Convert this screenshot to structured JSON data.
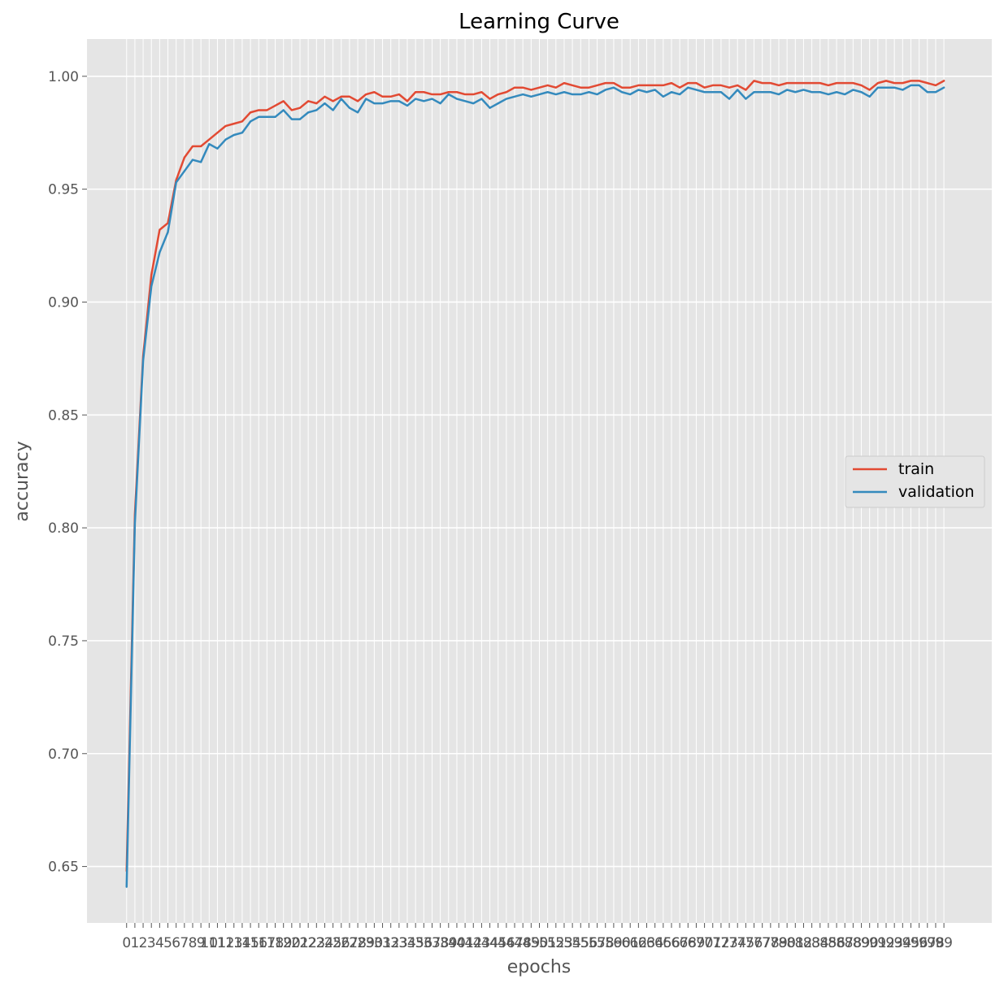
{
  "chart_data": {
    "type": "line",
    "title": "Learning Curve",
    "xlabel": "epochs",
    "ylabel": "accuracy",
    "xlim": [
      -4.8,
      104.8
    ],
    "ylim": [
      0.625,
      1.0165
    ],
    "yticks": [
      0.65,
      0.7,
      0.75,
      0.8,
      0.85,
      0.9,
      0.95,
      1.0
    ],
    "ytick_labels": [
      "0.65",
      "0.70",
      "0.75",
      "0.80",
      "0.85",
      "0.90",
      "0.95",
      "1.00"
    ],
    "grid": true,
    "legend_position": "center-right",
    "background": "#e5e5e5",
    "grid_color": "#ffffff",
    "x": [
      0,
      1,
      2,
      3,
      4,
      5,
      6,
      7,
      8,
      9,
      10,
      11,
      12,
      13,
      14,
      15,
      16,
      17,
      18,
      19,
      20,
      21,
      22,
      23,
      24,
      25,
      26,
      27,
      28,
      29,
      30,
      31,
      32,
      33,
      34,
      35,
      36,
      37,
      38,
      39,
      40,
      41,
      42,
      43,
      44,
      45,
      46,
      47,
      48,
      49,
      50,
      51,
      52,
      53,
      54,
      55,
      56,
      57,
      58,
      59,
      60,
      61,
      62,
      63,
      64,
      65,
      66,
      67,
      68,
      69,
      70,
      71,
      72,
      73,
      74,
      75,
      76,
      77,
      78,
      79,
      80,
      81,
      82,
      83,
      84,
      85,
      86,
      87,
      88,
      89,
      90,
      91,
      92,
      93,
      94,
      95,
      96,
      97,
      98,
      99
    ],
    "series": [
      {
        "name": "train",
        "color": "#e24a33",
        "values": [
          0.648,
          0.806,
          0.876,
          0.912,
          0.932,
          0.935,
          0.954,
          0.964,
          0.969,
          0.969,
          0.972,
          0.975,
          0.978,
          0.979,
          0.98,
          0.984,
          0.985,
          0.985,
          0.987,
          0.989,
          0.985,
          0.986,
          0.989,
          0.988,
          0.991,
          0.989,
          0.991,
          0.991,
          0.989,
          0.992,
          0.993,
          0.991,
          0.991,
          0.992,
          0.989,
          0.993,
          0.993,
          0.992,
          0.992,
          0.993,
          0.993,
          0.992,
          0.992,
          0.993,
          0.99,
          0.992,
          0.993,
          0.995,
          0.995,
          0.994,
          0.995,
          0.996,
          0.995,
          0.997,
          0.996,
          0.995,
          0.995,
          0.996,
          0.997,
          0.997,
          0.995,
          0.995,
          0.996,
          0.996,
          0.996,
          0.996,
          0.997,
          0.995,
          0.997,
          0.997,
          0.995,
          0.996,
          0.996,
          0.995,
          0.996,
          0.994,
          0.998,
          0.997,
          0.997,
          0.996,
          0.997,
          0.997,
          0.997,
          0.997,
          0.997,
          0.996,
          0.997,
          0.997,
          0.997,
          0.996,
          0.994,
          0.997,
          0.998,
          0.997,
          0.997,
          0.998,
          0.998,
          0.997,
          0.996,
          0.998
        ]
      },
      {
        "name": "validation",
        "color": "#348abd",
        "values": [
          0.641,
          0.802,
          0.874,
          0.907,
          0.922,
          0.931,
          0.953,
          0.958,
          0.963,
          0.962,
          0.97,
          0.968,
          0.972,
          0.974,
          0.975,
          0.98,
          0.982,
          0.982,
          0.982,
          0.985,
          0.981,
          0.981,
          0.984,
          0.985,
          0.988,
          0.985,
          0.99,
          0.986,
          0.984,
          0.99,
          0.988,
          0.988,
          0.989,
          0.989,
          0.987,
          0.99,
          0.989,
          0.99,
          0.988,
          0.992,
          0.99,
          0.989,
          0.988,
          0.99,
          0.986,
          0.988,
          0.99,
          0.991,
          0.992,
          0.991,
          0.992,
          0.993,
          0.992,
          0.993,
          0.992,
          0.992,
          0.993,
          0.992,
          0.994,
          0.995,
          0.993,
          0.992,
          0.994,
          0.993,
          0.994,
          0.991,
          0.993,
          0.992,
          0.995,
          0.994,
          0.993,
          0.993,
          0.993,
          0.99,
          0.994,
          0.99,
          0.993,
          0.993,
          0.993,
          0.992,
          0.994,
          0.993,
          0.994,
          0.993,
          0.993,
          0.992,
          0.993,
          0.992,
          0.994,
          0.993,
          0.991,
          0.995,
          0.995,
          0.995,
          0.994,
          0.996,
          0.996,
          0.993,
          0.993,
          0.995
        ]
      }
    ]
  }
}
